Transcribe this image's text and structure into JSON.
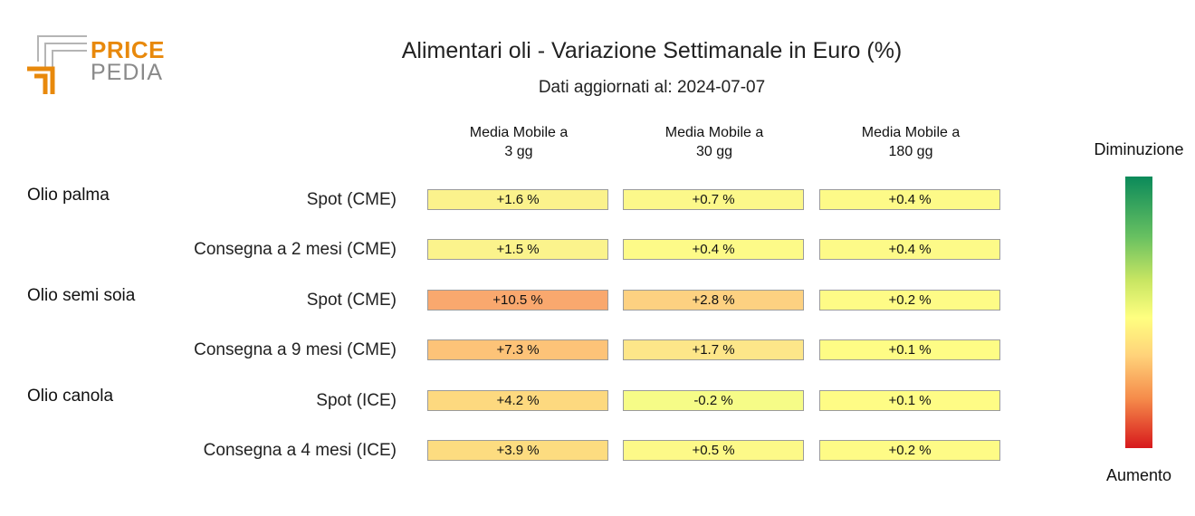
{
  "logo": {
    "line1": "PRICE",
    "line2": "PEDIA",
    "colors": {
      "orange": "#e8890c",
      "gray": "#8a8a8a"
    }
  },
  "header": {
    "title": "Alimentari oli - Variazione Settimanale in Euro (%)",
    "subtitle": "Dati aggiornati al: 2024-07-07"
  },
  "legend": {
    "top_label": "Diminuzione",
    "bottom_label": "Aumento"
  },
  "chart_data": {
    "type": "table",
    "columns": [
      "Media Mobile a\n3 gg",
      "Media Mobile a\n30 gg",
      "Media Mobile a\n180 gg"
    ],
    "groups": [
      {
        "name": "Olio palma",
        "rows": [
          {
            "label": "Spot (CME)",
            "values": [
              "+1.6 %",
              "+0.7 %",
              "+0.4 %"
            ],
            "colors": [
              "#fbf28c",
              "#fcf88a",
              "#fdfa88"
            ]
          },
          {
            "label": "Consegna a 2 mesi (CME)",
            "values": [
              "+1.5 %",
              "+0.4 %",
              "+0.4 %"
            ],
            "colors": [
              "#fbf38c",
              "#fdfa88",
              "#fdfa88"
            ]
          }
        ]
      },
      {
        "name": "Olio semi soia",
        "rows": [
          {
            "label": "Spot (CME)",
            "values": [
              "+10.5 %",
              "+2.8 %",
              "+0.2 %"
            ],
            "colors": [
              "#f9a86e",
              "#fdd181",
              "#fefb86"
            ]
          },
          {
            "label": "Consegna a 9 mesi (CME)",
            "values": [
              "+7.3 %",
              "+1.7 %",
              "+0.1 %"
            ],
            "colors": [
              "#fdc378",
              "#fde689",
              "#fefc85"
            ]
          }
        ]
      },
      {
        "name": "Olio canola",
        "rows": [
          {
            "label": "Spot (ICE)",
            "values": [
              "+4.2 %",
              "-0.2 %",
              "+0.1 %"
            ],
            "colors": [
              "#fdd97f",
              "#f6fc87",
              "#fefc85"
            ]
          },
          {
            "label": "Consegna a 4 mesi (ICE)",
            "values": [
              "+3.9 %",
              "+0.5 %",
              "+0.2 %"
            ],
            "colors": [
              "#fddc80",
              "#fdf988",
              "#fefb86"
            ]
          }
        ]
      }
    ]
  }
}
